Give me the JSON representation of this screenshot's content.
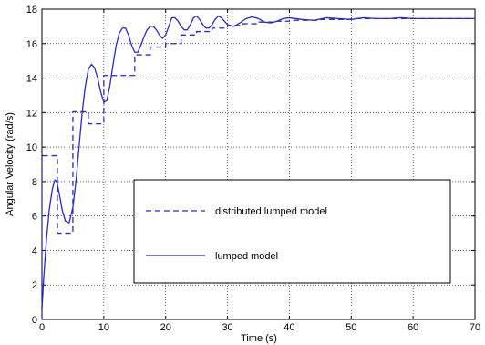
{
  "chart_data": {
    "type": "line",
    "title": "",
    "xlabel": "Time (s)",
    "ylabel": "Angular Velocity (rad/s)",
    "xlim": [
      0,
      70
    ],
    "ylim": [
      0,
      18
    ],
    "xticks": [
      "0",
      "10",
      "20",
      "30",
      "40",
      "50",
      "60",
      "70"
    ],
    "yticks": [
      "0",
      "2",
      "4",
      "6",
      "8",
      "10",
      "12",
      "14",
      "16",
      "18"
    ],
    "grid": true,
    "legend_position": "lower-center",
    "series": [
      {
        "name": "distributed lumped model",
        "style": "dashed",
        "color": "#2b2bbf",
        "x": [
          0,
          0,
          2.5,
          2.5,
          5,
          5,
          7.5,
          7.5,
          10,
          10,
          12.5,
          12.5,
          15,
          15,
          17.5,
          17.5,
          20,
          20,
          22.5,
          22.5,
          25,
          25,
          27.5,
          27.5,
          30,
          30,
          32.5,
          32.5,
          35,
          35,
          37.5,
          37.5,
          40,
          40,
          45,
          45,
          50,
          50,
          55,
          55,
          60,
          60,
          70
        ],
        "y": [
          0,
          9.5,
          9.5,
          5.0,
          5.0,
          12.05,
          12.05,
          11.35,
          11.35,
          14.15,
          14.15,
          14.15,
          14.15,
          15.35,
          15.35,
          15.8,
          15.8,
          16.0,
          16.0,
          16.5,
          16.5,
          16.7,
          16.7,
          16.9,
          16.9,
          17.05,
          17.05,
          17.15,
          17.15,
          17.25,
          17.25,
          17.3,
          17.3,
          17.35,
          17.35,
          17.4,
          17.4,
          17.45,
          17.45,
          17.45,
          17.45,
          17.45,
          17.45
        ]
      },
      {
        "name": "lumped model",
        "style": "solid",
        "color": "#2b2bbf",
        "x": [
          0,
          0.3,
          0.7,
          1.2,
          1.7,
          2.1,
          2.4,
          2.8,
          3.3,
          3.8,
          4.4,
          5.0,
          5.5,
          6.0,
          6.5,
          7.0,
          7.5,
          8.0,
          8.5,
          9.0,
          9.5,
          10.0,
          10.5,
          11.0,
          11.5,
          12.0,
          12.5,
          13.0,
          13.5,
          14.0,
          14.5,
          15.0,
          15.5,
          16.0,
          16.5,
          17.0,
          17.5,
          18.0,
          18.5,
          19.0,
          19.5,
          20.0,
          20.5,
          21.0,
          21.5,
          22.0,
          22.5,
          23.0,
          23.5,
          24.0,
          24.5,
          25.0,
          25.5,
          26.0,
          26.5,
          27.0,
          27.5,
          28.0,
          28.5,
          29.0,
          29.5,
          30.0,
          31.0,
          32.0,
          33.0,
          34.0,
          35.0,
          36.0,
          37.0,
          38.0,
          39.0,
          40.0,
          42.0,
          44.0,
          46.0,
          48.0,
          50.0,
          52.0,
          54.0,
          56.0,
          58.0,
          60.0,
          62.0,
          64.0,
          66.0,
          68.0,
          70.0
        ],
        "y": [
          0.6,
          2.5,
          4.5,
          6.4,
          7.6,
          8.1,
          8.0,
          7.3,
          6.3,
          5.7,
          5.6,
          6.5,
          8.0,
          10.0,
          12.0,
          13.5,
          14.5,
          14.8,
          14.6,
          14.0,
          13.2,
          12.6,
          12.7,
          13.6,
          14.8,
          15.9,
          16.6,
          16.9,
          16.9,
          16.5,
          15.9,
          15.5,
          15.5,
          15.9,
          16.4,
          16.8,
          17.0,
          17.0,
          16.8,
          16.5,
          16.3,
          16.5,
          17.0,
          17.5,
          17.5,
          17.3,
          17.0,
          16.8,
          16.8,
          17.1,
          17.5,
          17.6,
          17.4,
          17.1,
          16.9,
          16.9,
          17.1,
          17.4,
          17.6,
          17.5,
          17.3,
          17.1,
          17.0,
          17.2,
          17.45,
          17.55,
          17.45,
          17.25,
          17.2,
          17.3,
          17.45,
          17.5,
          17.4,
          17.35,
          17.5,
          17.45,
          17.4,
          17.5,
          17.45,
          17.45,
          17.5,
          17.45,
          17.45,
          17.45,
          17.45,
          17.45,
          17.45
        ]
      }
    ]
  }
}
